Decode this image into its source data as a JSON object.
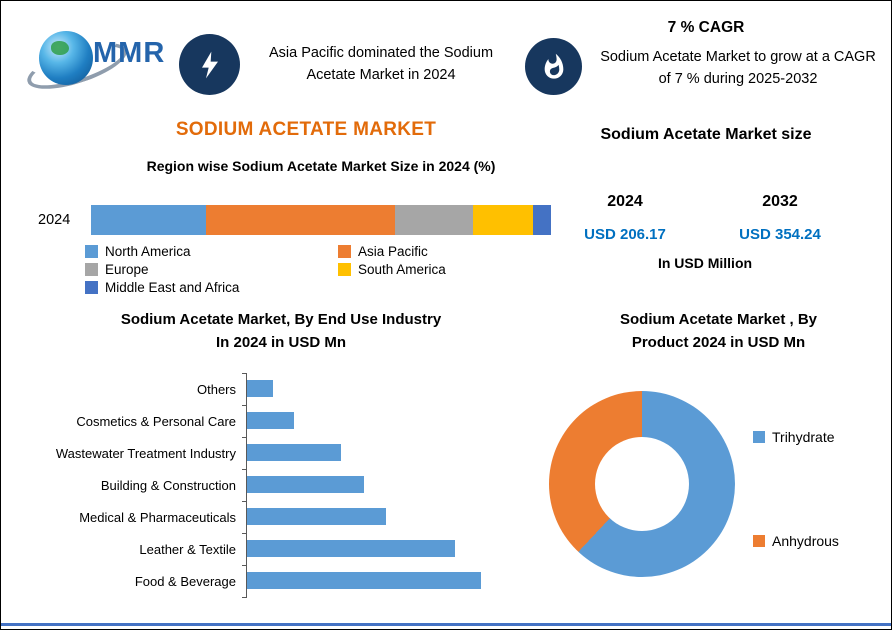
{
  "header": {
    "logo_text": "MMR",
    "highlight1": "Asia Pacific dominated the Sodium Acetate Market in 2024",
    "cagr_title": "7 % CAGR",
    "highlight2": "Sodium Acetate Market to grow at a CAGR of 7 % during 2025-2032"
  },
  "main_title": "SODIUM ACETATE MARKET",
  "market_size": {
    "title": "Sodium Acetate Market size",
    "periods": [
      {
        "year": "2024",
        "value": "USD 206.17"
      },
      {
        "year": "2032",
        "value": "USD 354.24"
      }
    ],
    "unit": "In USD Million",
    "value_color": "#0070c0"
  },
  "colors": {
    "title_orange": "#e26b0a",
    "badge_navy": "#17375e",
    "footer_line_blue": "#4472c4"
  },
  "icons": [
    "mmr-globe-logo",
    "lightning-icon",
    "flame-icon"
  ],
  "chart_data": [
    {
      "id": "region-share",
      "type": "bar",
      "subtype": "stacked-horizontal",
      "title": "Region wise Sodium Acetate Market Size in 2024 (%)",
      "row_label": "2024",
      "unit": "%",
      "segments": [
        {
          "label": "North America",
          "value": 25,
          "color": "#5b9bd5"
        },
        {
          "label": "Asia Pacific",
          "value": 41,
          "color": "#ed7d31"
        },
        {
          "label": "Europe",
          "value": 17,
          "color": "#a6a6a6"
        },
        {
          "label": "South America",
          "value": 13,
          "color": "#ffc000"
        },
        {
          "label": "Middle East and Africa",
          "value": 4,
          "color": "#4472c4"
        }
      ],
      "legend_position": "bottom"
    },
    {
      "id": "end-use-industry",
      "type": "bar",
      "subtype": "horizontal",
      "title": "Sodium Acetate Market, By  End Use Industry In 2024 in USD Mn",
      "title_lines": [
        "Sodium Acetate Market, By  End Use Industry",
        "In 2024 in USD Mn"
      ],
      "categories": [
        "Others",
        "Cosmetics & Personal Care",
        "Wastewater Treatment Industry",
        "Building & Construction",
        "Medical & Pharmaceuticals",
        "Leather & Textile",
        "Food & Beverage"
      ],
      "values": [
        6.2,
        11.2,
        22.4,
        27.9,
        33.1,
        49.8,
        56.0
      ],
      "bar_color": "#5b9bd5",
      "xlim": [
        0,
        65
      ],
      "ylabel": "",
      "xlabel": "",
      "grid": false
    },
    {
      "id": "product-split",
      "type": "pie",
      "subtype": "donut",
      "title": "Sodium Acetate Market , By Product 2024 in USD Mn",
      "title_lines": [
        "Sodium Acetate Market , By",
        "Product 2024 in USD Mn"
      ],
      "slices": [
        {
          "label": "Trihydrate",
          "value": 62,
          "color": "#5b9bd5"
        },
        {
          "label": "Anhydrous",
          "value": 38,
          "color": "#ed7d31"
        }
      ],
      "legend_position": "right"
    }
  ]
}
